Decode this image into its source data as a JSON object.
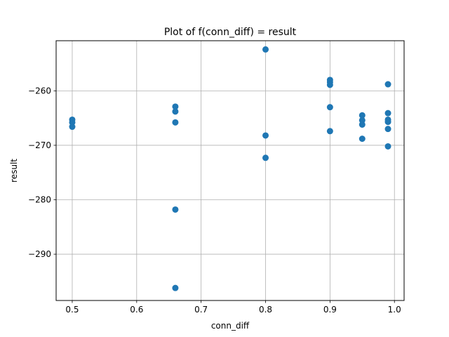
{
  "chart_data": {
    "type": "scatter",
    "title": "Plot of f(conn_diff) = result",
    "xlabel": "conn_diff",
    "ylabel": "result",
    "xlim": [
      0.475,
      1.015
    ],
    "ylim": [
      -298.5,
      -250.8
    ],
    "xticks": [
      0.5,
      0.6,
      0.7,
      0.8,
      0.9,
      1.0
    ],
    "xtick_labels": [
      "0.5",
      "0.6",
      "0.7",
      "0.8",
      "0.9",
      "1.0"
    ],
    "yticks": [
      -260,
      -270,
      -280,
      -290
    ],
    "ytick_labels": [
      "−260",
      "−270",
      "−280",
      "−290"
    ],
    "grid": true,
    "marker_color": "#1f77b4",
    "points": [
      {
        "x": 0.5,
        "y": -265.3
      },
      {
        "x": 0.5,
        "y": -265.8
      },
      {
        "x": 0.5,
        "y": -266.6
      },
      {
        "x": 0.66,
        "y": -262.9
      },
      {
        "x": 0.66,
        "y": -263.8
      },
      {
        "x": 0.66,
        "y": -265.8
      },
      {
        "x": 0.66,
        "y": -281.8
      },
      {
        "x": 0.66,
        "y": -296.2
      },
      {
        "x": 0.8,
        "y": -252.4
      },
      {
        "x": 0.8,
        "y": -268.2
      },
      {
        "x": 0.8,
        "y": -272.3
      },
      {
        "x": 0.9,
        "y": -258.0
      },
      {
        "x": 0.9,
        "y": -258.4
      },
      {
        "x": 0.9,
        "y": -258.9
      },
      {
        "x": 0.9,
        "y": -263.0
      },
      {
        "x": 0.9,
        "y": -267.4
      },
      {
        "x": 0.95,
        "y": -264.5
      },
      {
        "x": 0.95,
        "y": -265.4
      },
      {
        "x": 0.95,
        "y": -266.2
      },
      {
        "x": 0.95,
        "y": -268.8
      },
      {
        "x": 0.99,
        "y": -258.8
      },
      {
        "x": 0.99,
        "y": -264.1
      },
      {
        "x": 0.99,
        "y": -265.3
      },
      {
        "x": 0.99,
        "y": -265.7
      },
      {
        "x": 0.99,
        "y": -267.0
      },
      {
        "x": 0.99,
        "y": -270.2
      }
    ]
  }
}
